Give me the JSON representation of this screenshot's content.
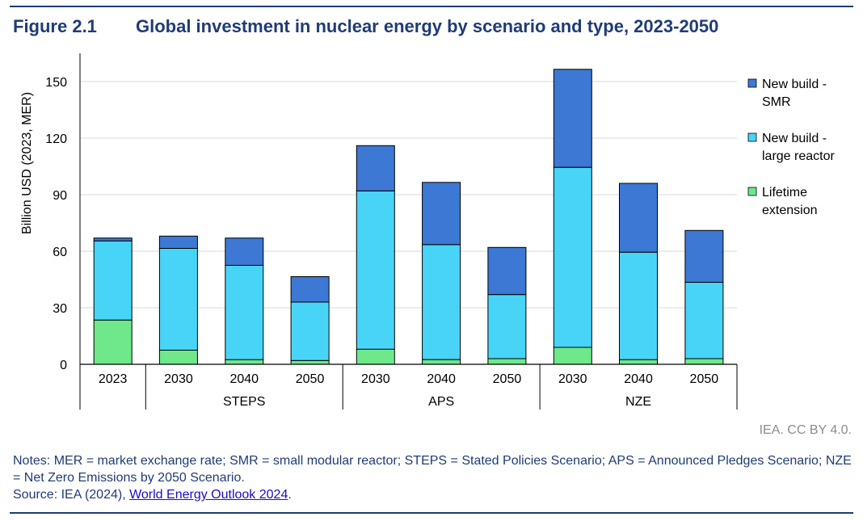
{
  "header": {
    "figure_number": "Figure 2.1",
    "title": "Global investment in nuclear energy by scenario and type, 2023-2050"
  },
  "chart_data": {
    "type": "bar",
    "stacked": true,
    "ylabel": "Billion USD (2023, MER)",
    "ylim": [
      0,
      150
    ],
    "yticks": [
      0,
      30,
      60,
      90,
      120,
      150
    ],
    "grid": true,
    "legend_position": "right",
    "categories": [
      "2023",
      "2030",
      "2040",
      "2050",
      "2030",
      "2040",
      "2050",
      "2030",
      "2040",
      "2050"
    ],
    "groups": [
      {
        "label": "",
        "count": 1
      },
      {
        "label": "STEPS",
        "count": 3
      },
      {
        "label": "APS",
        "count": 3
      },
      {
        "label": "NZE",
        "count": 3
      }
    ],
    "series": [
      {
        "name": "Lifetime extension",
        "color": "#6ee88a",
        "values": [
          23.5,
          7.5,
          2.5,
          2,
          8,
          2.5,
          3,
          9,
          2.5,
          3
        ]
      },
      {
        "name": "New build - large reactor",
        "color": "#48d4f7",
        "values": [
          42,
          54,
          50,
          31,
          84,
          61,
          34,
          95.5,
          57,
          40.5
        ]
      },
      {
        "name": "New build - SMR",
        "color": "#3c78d4",
        "values": [
          1.5,
          6.5,
          14.5,
          13.5,
          24,
          33,
          25,
          52,
          36.5,
          27.5
        ]
      }
    ],
    "legend": [
      {
        "line1": "New build -",
        "line2": "SMR",
        "color": "#3c78d4"
      },
      {
        "line1": "New build -",
        "line2": "large reactor",
        "color": "#48d4f7"
      },
      {
        "line1": "Lifetime",
        "line2": "extension",
        "color": "#6ee88a"
      }
    ]
  },
  "credit": "IEA. CC BY 4.0.",
  "notes": {
    "text": "Notes: MER = market exchange rate; SMR = small modular reactor; STEPS = Stated Policies Scenario; APS = Announced Pledges Scenario; NZE = Net Zero Emissions by 2050 Scenario.",
    "source_prefix": "Source: IEA (2024), ",
    "source_link": "World Energy Outlook 2024",
    "source_suffix": "."
  }
}
